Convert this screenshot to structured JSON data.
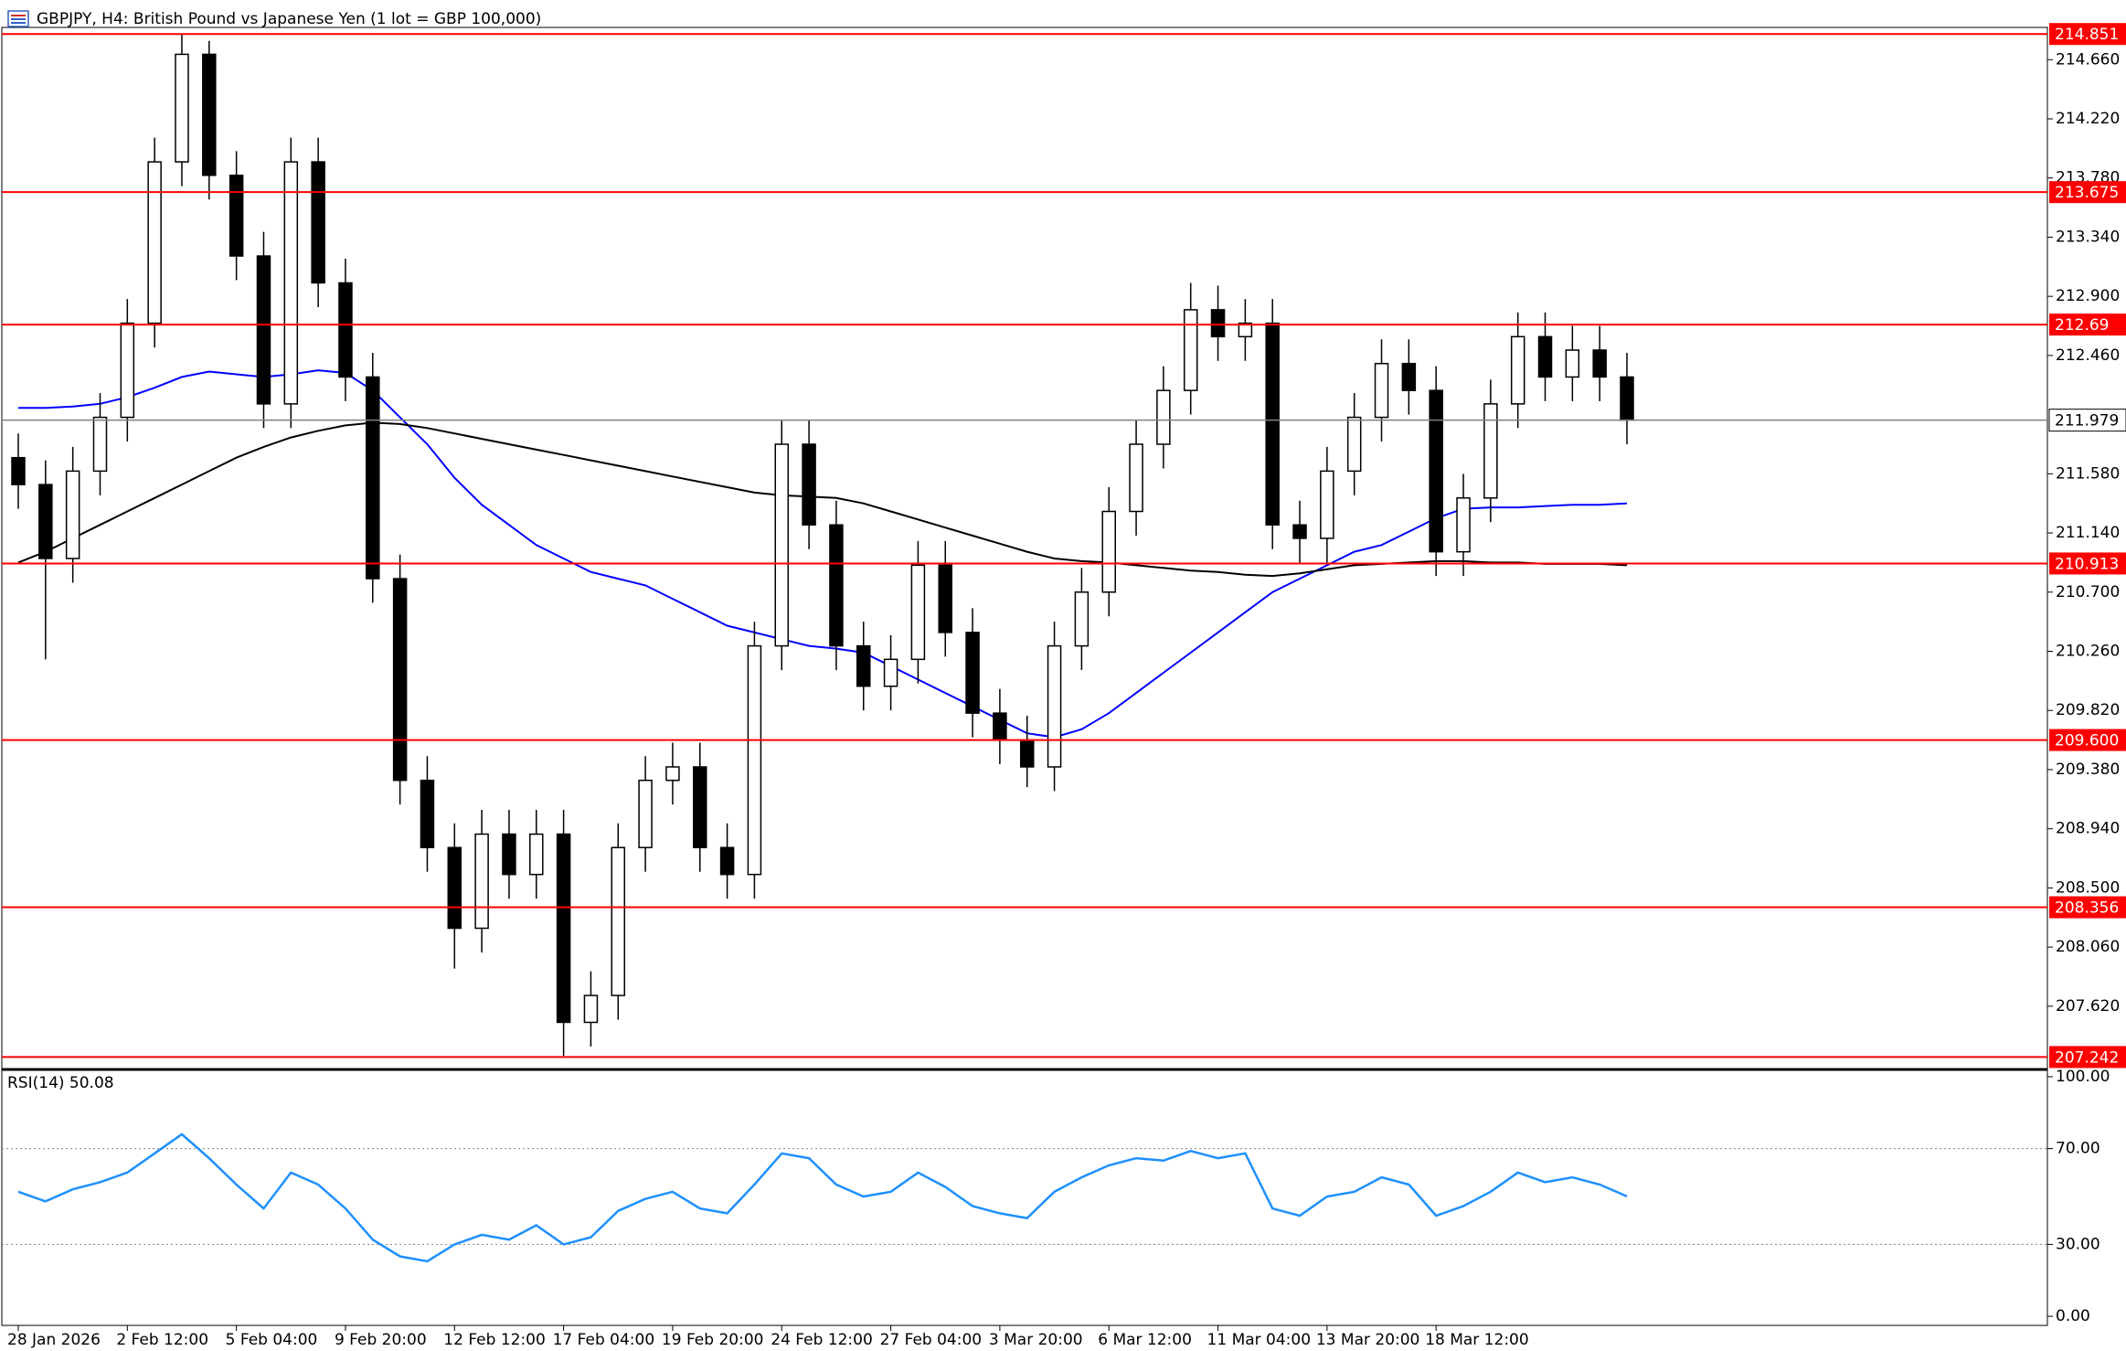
{
  "chart_data": {
    "type": "candlestick",
    "title": "GBPJPY, H4:  British Pound vs Japanese Yen (1 lot = GBP 100,000)",
    "categories": [
      "28 Jan 2026",
      null,
      null,
      null,
      "2 Feb 12:00",
      null,
      null,
      null,
      "5 Feb 04:00",
      null,
      null,
      null,
      "9 Feb 20:00",
      null,
      null,
      null,
      "12 Feb 12:00",
      null,
      null,
      null,
      "17 Feb 04:00",
      null,
      null,
      null,
      "19 Feb 20:00",
      null,
      null,
      null,
      "24 Feb 12:00",
      null,
      null,
      null,
      "27 Feb 04:00",
      null,
      null,
      null,
      "3 Mar 20:00",
      null,
      null,
      null,
      "6 Mar 12:00",
      null,
      null,
      null,
      "11 Mar 04:00",
      null,
      null,
      null,
      "13 Mar 20:00",
      null,
      null,
      null,
      "18 Mar 12:00",
      null,
      null,
      null,
      null,
      null,
      null,
      null
    ],
    "open": [
      211.7,
      211.5,
      210.95,
      211.6,
      212.0,
      212.7,
      213.9,
      214.7,
      213.8,
      213.2,
      212.1,
      213.9,
      213.0,
      212.3,
      210.8,
      209.3,
      208.8,
      208.2,
      208.9,
      208.6,
      208.9,
      207.5,
      207.7,
      208.8,
      209.3,
      209.4,
      208.8,
      208.6,
      210.3,
      211.8,
      211.2,
      210.3,
      210.0,
      210.2,
      210.9,
      210.4,
      209.8,
      209.6,
      209.4,
      210.3,
      210.7,
      211.3,
      211.8,
      212.2,
      212.8,
      212.6,
      212.7,
      211.2,
      211.1,
      211.6,
      212.0,
      212.4,
      212.2,
      211.0,
      211.4,
      212.1,
      212.6,
      212.3,
      212.5,
      212.3
    ],
    "high": [
      211.88,
      211.68,
      211.78,
      212.18,
      212.88,
      214.08,
      214.85,
      214.8,
      213.98,
      213.38,
      214.08,
      214.08,
      213.18,
      212.48,
      210.98,
      209.48,
      208.98,
      209.08,
      209.08,
      209.08,
      209.08,
      207.88,
      208.98,
      209.48,
      209.58,
      209.58,
      208.98,
      210.48,
      211.98,
      211.98,
      211.38,
      210.48,
      210.38,
      211.08,
      211.08,
      210.58,
      209.98,
      209.78,
      210.48,
      210.88,
      211.48,
      211.98,
      212.38,
      213.0,
      212.98,
      212.88,
      212.88,
      211.38,
      211.78,
      212.18,
      212.58,
      212.58,
      212.38,
      211.58,
      212.28,
      212.78,
      212.78,
      212.68,
      212.68,
      212.48
    ],
    "low": [
      211.32,
      210.2,
      210.77,
      211.42,
      211.82,
      212.52,
      213.72,
      213.62,
      213.02,
      211.92,
      211.92,
      212.82,
      212.12,
      210.62,
      209.12,
      208.62,
      207.9,
      208.02,
      208.42,
      208.42,
      207.25,
      207.32,
      207.52,
      208.62,
      209.12,
      208.62,
      208.42,
      208.42,
      210.12,
      211.02,
      210.12,
      209.82,
      209.82,
      210.02,
      210.22,
      209.62,
      209.42,
      209.25,
      209.22,
      210.12,
      210.52,
      211.12,
      211.62,
      212.02,
      212.42,
      212.42,
      211.02,
      210.92,
      210.92,
      211.42,
      211.82,
      212.02,
      210.82,
      210.82,
      211.22,
      211.92,
      212.12,
      212.12,
      212.12,
      211.8
    ],
    "close": [
      211.5,
      210.95,
      211.6,
      212.0,
      212.7,
      213.9,
      214.7,
      213.8,
      213.2,
      212.1,
      213.9,
      213.0,
      212.3,
      210.8,
      209.3,
      208.8,
      208.2,
      208.9,
      208.6,
      208.9,
      207.5,
      207.7,
      208.8,
      209.3,
      209.4,
      208.8,
      208.6,
      210.3,
      211.8,
      211.2,
      210.3,
      210.0,
      210.2,
      210.9,
      210.4,
      209.8,
      209.6,
      209.4,
      210.3,
      210.7,
      211.3,
      211.8,
      212.2,
      212.8,
      212.6,
      212.7,
      211.2,
      211.1,
      211.6,
      212.0,
      212.4,
      212.2,
      211.0,
      211.4,
      212.1,
      212.6,
      212.3,
      212.5,
      212.3,
      211.979
    ],
    "up_color": "#ffffff",
    "down_color": "#000000",
    "ylim": [
      207.17,
      214.9
    ],
    "yticks": [
      {
        "value": 214.66,
        "label": "214.660"
      },
      {
        "value": 214.22,
        "label": "214.220"
      },
      {
        "value": 213.78,
        "label": "213.780"
      },
      {
        "value": 213.34,
        "label": "213.340"
      },
      {
        "value": 212.9,
        "label": "212.900"
      },
      {
        "value": 212.46,
        "label": "212.460"
      },
      {
        "value": 211.58,
        "label": "211.580"
      },
      {
        "value": 211.14,
        "label": "211.140"
      },
      {
        "value": 210.7,
        "label": "210.700"
      },
      {
        "value": 210.26,
        "label": "210.260"
      },
      {
        "value": 209.82,
        "label": "209.820"
      },
      {
        "value": 209.38,
        "label": "209.380"
      },
      {
        "value": 208.94,
        "label": "208.940"
      },
      {
        "value": 208.5,
        "label": "208.500"
      },
      {
        "value": 208.06,
        "label": "208.060"
      },
      {
        "value": 207.62,
        "label": "207.620"
      }
    ],
    "levels": [
      214.851,
      213.675,
      212.69,
      210.913,
      {
        "value": 209.6,
        "label": "209.600"
      },
      208.356,
      207.242
    ],
    "level_color": "#ff0000",
    "current_price": 211.979,
    "series": [
      {
        "color": "#0000ff",
        "values": [
          212.07,
          212.07,
          212.08,
          212.1,
          212.15,
          212.22,
          212.3,
          212.34,
          212.32,
          212.3,
          212.32,
          212.35,
          212.33,
          212.2,
          212.0,
          211.8,
          211.55,
          211.35,
          211.2,
          211.05,
          210.95,
          210.85,
          210.8,
          210.75,
          210.65,
          210.55,
          210.45,
          210.4,
          210.35,
          210.3,
          210.28,
          210.25,
          210.15,
          210.05,
          209.95,
          209.85,
          209.75,
          209.65,
          209.62,
          209.68,
          209.8,
          209.95,
          210.1,
          210.25,
          210.4,
          210.55,
          210.7,
          210.8,
          210.9,
          211.0,
          211.05,
          211.15,
          211.25,
          211.32,
          211.33,
          211.33,
          211.34,
          211.35,
          211.35,
          211.36
        ]
      },
      {
        "color": "#000000",
        "values": [
          210.92,
          211.0,
          211.1,
          211.2,
          211.3,
          211.4,
          211.5,
          211.6,
          211.7,
          211.78,
          211.85,
          211.9,
          211.94,
          211.96,
          211.95,
          211.92,
          211.88,
          211.84,
          211.8,
          211.76,
          211.72,
          211.68,
          211.64,
          211.6,
          211.56,
          211.52,
          211.48,
          211.44,
          211.42,
          211.41,
          211.4,
          211.36,
          211.3,
          211.24,
          211.18,
          211.12,
          211.06,
          211.0,
          210.95,
          210.93,
          210.92,
          210.9,
          210.88,
          210.86,
          210.85,
          210.83,
          210.82,
          210.84,
          210.87,
          210.9,
          210.91,
          210.92,
          210.93,
          210.93,
          210.92,
          210.92,
          210.91,
          210.91,
          210.91,
          210.9
        ]
      }
    ],
    "rsi": {
      "title": "RSI(14) 50.08",
      "color": "#1e90ff",
      "values": [
        52,
        48,
        53,
        56,
        60,
        68,
        76,
        66,
        55,
        45,
        60,
        55,
        45,
        32,
        25,
        23,
        30,
        34,
        32,
        38,
        30,
        33,
        44,
        49,
        52,
        45,
        43,
        55,
        68,
        66,
        55,
        50,
        52,
        60,
        54,
        46,
        43,
        41,
        52,
        58,
        63,
        66,
        65,
        69,
        66,
        68,
        45,
        42,
        50,
        52,
        58,
        55,
        42,
        46,
        52,
        60,
        56,
        58,
        55,
        50.08
      ],
      "ylim": [
        -3.8,
        101.9
      ],
      "yticks": [
        {
          "value": 100,
          "label": "100.00"
        },
        {
          "value": 70,
          "label": "70.00"
        },
        {
          "value": 30,
          "label": "30.00"
        },
        {
          "value": 0,
          "label": "0.00"
        }
      ]
    }
  }
}
